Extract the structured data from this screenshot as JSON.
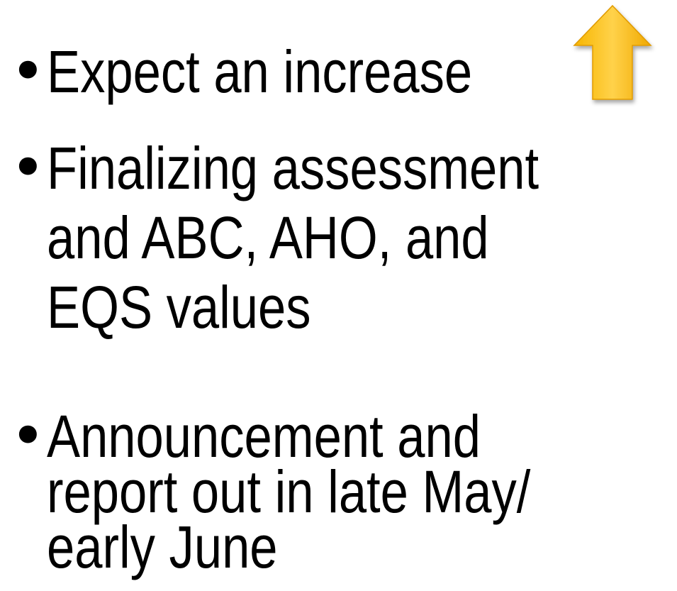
{
  "bullets": [
    {
      "lines": [
        "Expect an increase"
      ]
    },
    {
      "lines": [
        "Finalizing assessment",
        "and ABC, AHO, and",
        "EQS values"
      ]
    },
    {
      "lines": [
        "Announcement and",
        "report out in late May/",
        "early June"
      ]
    }
  ]
}
